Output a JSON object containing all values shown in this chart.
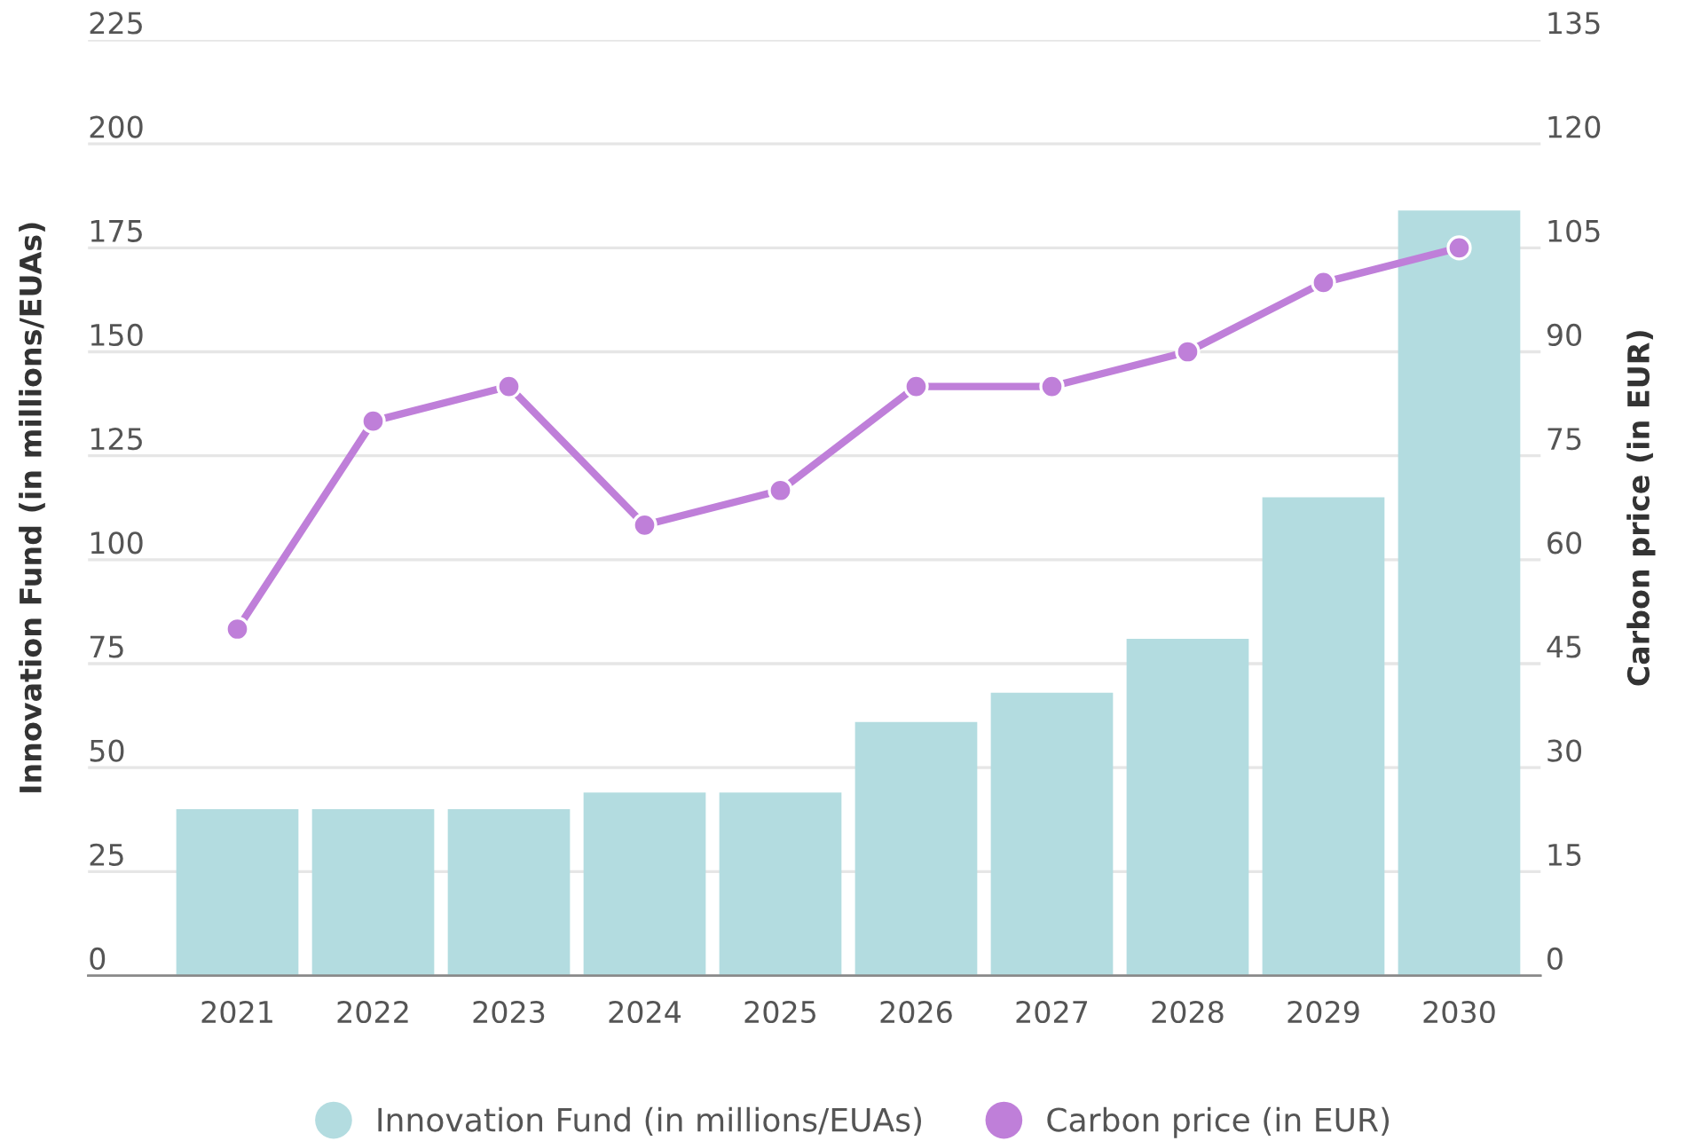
{
  "chart_data": {
    "type": "bar",
    "categories": [
      "2021",
      "2022",
      "2023",
      "2024",
      "2025",
      "2026",
      "2027",
      "2028",
      "2029",
      "2030"
    ],
    "series": [
      {
        "name": "Innovation Fund (in millions/EUAs)",
        "color": "#b3dce0",
        "values": [
          40,
          40,
          40,
          44,
          44,
          61,
          68,
          81,
          115,
          184
        ]
      },
      {
        "name": "Carbon price (in EUR)",
        "type": "line",
        "axis": "y2",
        "color": "#bf7fd9",
        "marker": "circle",
        "values": [
          50,
          80,
          85,
          65,
          70,
          85,
          85,
          90,
          100,
          105
        ]
      }
    ],
    "ylabel": "Innovation Fund (in millions/EUAs)",
    "y2label": "Carbon price (in EUR)",
    "ylim": [
      0,
      225
    ],
    "yticks": [
      0,
      25,
      50,
      75,
      100,
      125,
      150,
      175,
      200,
      225
    ],
    "y2lim": [
      0,
      135
    ],
    "y2ticks": [
      0,
      15,
      30,
      45,
      60,
      75,
      90,
      105,
      120,
      135
    ],
    "grid": "y",
    "legend": "bottom"
  }
}
